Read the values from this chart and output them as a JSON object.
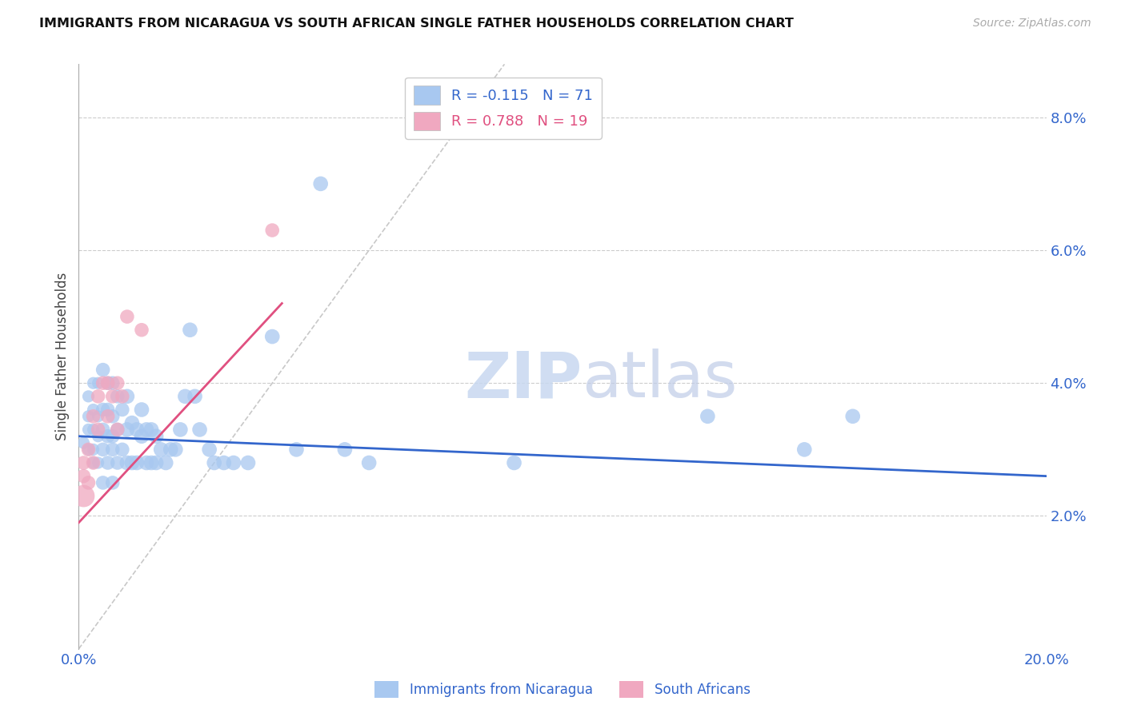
{
  "title": "IMMIGRANTS FROM NICARAGUA VS SOUTH AFRICAN SINGLE FATHER HOUSEHOLDS CORRELATION CHART",
  "source": "Source: ZipAtlas.com",
  "ylabel": "Single Father Households",
  "x_min": 0.0,
  "x_max": 0.2,
  "y_min": 0.0,
  "y_max": 0.088,
  "x_ticks": [
    0.0,
    0.04,
    0.08,
    0.12,
    0.16,
    0.2
  ],
  "x_tick_labels": [
    "0.0%",
    "",
    "",
    "",
    "",
    "20.0%"
  ],
  "y_ticks": [
    0.02,
    0.04,
    0.06,
    0.08
  ],
  "y_tick_labels": [
    "2.0%",
    "4.0%",
    "6.0%",
    "8.0%"
  ],
  "blue_color": "#A8C8F0",
  "pink_color": "#F0A8C0",
  "blue_line_color": "#3366CC",
  "pink_line_color": "#E05080",
  "diag_line_color": "#C8C8C8",
  "grid_color": "#CCCCCC",
  "legend_r_blue": "-0.115",
  "legend_n_blue": "71",
  "legend_r_pink": "0.788",
  "legend_n_pink": "19",
  "title_color": "#111111",
  "axis_label_color": "#3366CC",
  "watermark_zip": "ZIP",
  "watermark_atlas": "atlas",
  "blue_scatter_x": [
    0.001,
    0.002,
    0.002,
    0.002,
    0.002,
    0.003,
    0.003,
    0.003,
    0.003,
    0.003,
    0.004,
    0.004,
    0.004,
    0.004,
    0.005,
    0.005,
    0.005,
    0.005,
    0.005,
    0.006,
    0.006,
    0.006,
    0.006,
    0.007,
    0.007,
    0.007,
    0.007,
    0.007,
    0.008,
    0.008,
    0.008,
    0.009,
    0.009,
    0.01,
    0.01,
    0.01,
    0.011,
    0.011,
    0.012,
    0.012,
    0.013,
    0.013,
    0.014,
    0.014,
    0.015,
    0.015,
    0.016,
    0.016,
    0.017,
    0.018,
    0.019,
    0.02,
    0.021,
    0.022,
    0.023,
    0.024,
    0.025,
    0.027,
    0.028,
    0.03,
    0.032,
    0.035,
    0.04,
    0.045,
    0.05,
    0.055,
    0.06,
    0.09,
    0.13,
    0.15,
    0.16
  ],
  "blue_scatter_y": [
    0.031,
    0.03,
    0.033,
    0.035,
    0.038,
    0.028,
    0.03,
    0.033,
    0.036,
    0.04,
    0.028,
    0.032,
    0.035,
    0.04,
    0.025,
    0.03,
    0.033,
    0.036,
    0.042,
    0.028,
    0.032,
    0.036,
    0.04,
    0.025,
    0.03,
    0.032,
    0.035,
    0.04,
    0.028,
    0.033,
    0.038,
    0.03,
    0.036,
    0.028,
    0.033,
    0.038,
    0.028,
    0.034,
    0.028,
    0.033,
    0.032,
    0.036,
    0.028,
    0.033,
    0.028,
    0.033,
    0.028,
    0.032,
    0.03,
    0.028,
    0.03,
    0.03,
    0.033,
    0.038,
    0.048,
    0.038,
    0.033,
    0.03,
    0.028,
    0.028,
    0.028,
    0.028,
    0.047,
    0.03,
    0.07,
    0.03,
    0.028,
    0.028,
    0.035,
    0.03,
    0.035
  ],
  "pink_scatter_x": [
    0.001,
    0.001,
    0.001,
    0.002,
    0.002,
    0.003,
    0.003,
    0.004,
    0.004,
    0.005,
    0.006,
    0.006,
    0.007,
    0.008,
    0.008,
    0.009,
    0.01,
    0.013,
    0.04
  ],
  "pink_scatter_y": [
    0.023,
    0.026,
    0.028,
    0.025,
    0.03,
    0.028,
    0.035,
    0.033,
    0.038,
    0.04,
    0.035,
    0.04,
    0.038,
    0.033,
    0.04,
    0.038,
    0.05,
    0.048,
    0.063
  ],
  "pink_large_idx": [
    0
  ],
  "blue_trend_x": [
    0.0,
    0.2
  ],
  "blue_trend_y": [
    0.032,
    0.026
  ],
  "pink_trend_x": [
    0.0,
    0.042
  ],
  "pink_trend_y": [
    0.019,
    0.052
  ]
}
